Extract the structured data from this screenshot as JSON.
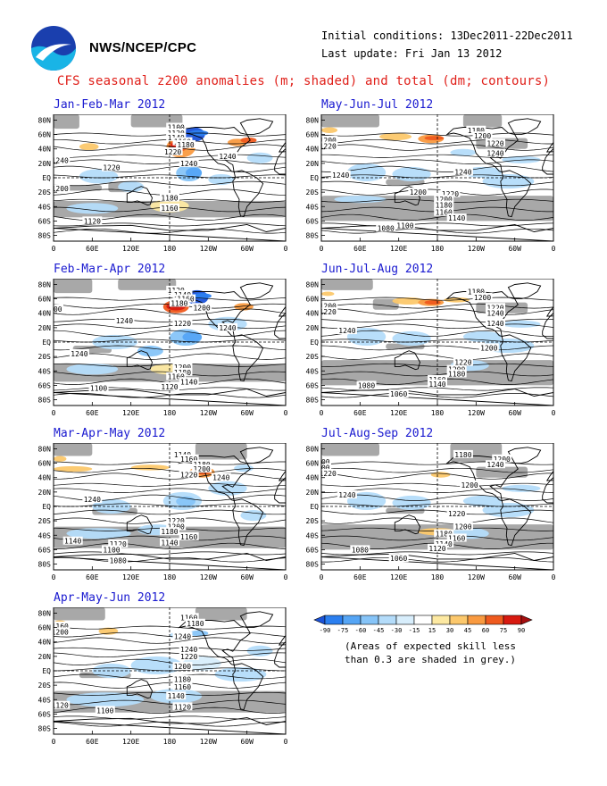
{
  "header": {
    "agency": "NWS/NCEP/CPC",
    "initial_conditions": "Initial conditions: 13Dec2011-22Dec2011",
    "last_update": "Last update: Fri Jan 13 2012",
    "title": "CFS seasonal z200 anomalies (m; shaded) and total (dm; contours)",
    "logo_text": "NOAA"
  },
  "axes": {
    "lat_ticks": [
      "80N",
      "60N",
      "40N",
      "20N",
      "EQ",
      "20S",
      "40S",
      "60S",
      "80S"
    ],
    "lon_ticks": [
      "0",
      "60E",
      "120E",
      "180",
      "120W",
      "60W",
      "0"
    ]
  },
  "legend": {
    "ticks": [
      "-90",
      "-75",
      "-60",
      "-45",
      "-30",
      "-15",
      "15",
      "30",
      "45",
      "60",
      "75",
      "90"
    ],
    "colors": [
      "#1b53d9",
      "#2b7ff0",
      "#55a5f5",
      "#86c4f8",
      "#b4dcfa",
      "#d8eefc",
      "#ffffff",
      "#fde9a2",
      "#fcc86c",
      "#f99a40",
      "#ef5a1e",
      "#d81a10",
      "#a50f0f"
    ],
    "note_line1": "(Areas of expected skill less",
    "note_line2": "than 0.3 are shaded in grey.)"
  },
  "colors": {
    "title_red": "#e0201a",
    "panel_title_blue": "#1a1ad0",
    "skill_grey": "#a8a8a8"
  },
  "chart_data": [
    {
      "type": "heatmap",
      "title": "Jan-Feb-Mar 2012",
      "xlabel": "",
      "ylabel": "",
      "contours_dm": [
        "1100",
        "1120",
        "1140",
        "1160",
        "1180",
        "1220",
        "1240",
        "1240",
        "1220",
        "1240",
        "1200",
        "1180",
        "1160",
        "1120"
      ]
    },
    {
      "type": "heatmap",
      "title": "Feb-Mar-Apr 2012",
      "xlabel": "",
      "ylabel": "",
      "contours_dm": [
        "1120",
        "1140",
        "1160",
        "1180",
        "1200",
        "1200",
        "1240",
        "1220",
        "1240",
        "1240",
        "1200",
        "1180",
        "1160",
        "1140",
        "1120",
        "1100"
      ]
    },
    {
      "type": "heatmap",
      "title": "Mar-Apr-May 2012",
      "xlabel": "",
      "ylabel": "",
      "contours_dm": [
        "1140",
        "1160",
        "1180",
        "1200",
        "1220",
        "1240",
        "1240",
        "1220",
        "1200",
        "1180",
        "1160",
        "1140",
        "1120",
        "1100",
        "1140",
        "1080"
      ]
    },
    {
      "type": "heatmap",
      "title": "Apr-May-Jun 2012",
      "xlabel": "",
      "ylabel": "",
      "contours_dm": [
        "1160",
        "1180",
        "1160",
        "1200",
        "1240",
        "1240",
        "1220",
        "1200",
        "1180",
        "1160",
        "1140",
        "1120",
        "1100",
        "1120"
      ]
    },
    {
      "type": "heatmap",
      "title": "May-Jun-Jul 2012",
      "xlabel": "",
      "ylabel": "",
      "contours_dm": [
        "1180",
        "1200",
        "1200",
        "1220",
        "1220",
        "1240",
        "1240",
        "1240",
        "1200",
        "1220",
        "1200",
        "1180",
        "1160",
        "1140",
        "1100",
        "1080"
      ]
    },
    {
      "type": "heatmap",
      "title": "Jun-Jul-Aug 2012",
      "xlabel": "",
      "ylabel": "",
      "contours_dm": [
        "1180",
        "1200",
        "1200",
        "1220",
        "1220",
        "1240",
        "1240",
        "1240",
        "1200",
        "1220",
        "1200",
        "1180",
        "1160",
        "1140",
        "1080",
        "1060"
      ]
    },
    {
      "type": "heatmap",
      "title": "Jul-Aug-Sep 2012",
      "xlabel": "",
      "ylabel": "",
      "contours_dm": [
        "1180",
        "1200",
        "1200",
        "1220",
        "1200",
        "1240",
        "1240",
        "1200",
        "1220",
        "1200",
        "1180",
        "1160",
        "1140",
        "1120",
        "1080",
        "1060"
      ]
    }
  ]
}
